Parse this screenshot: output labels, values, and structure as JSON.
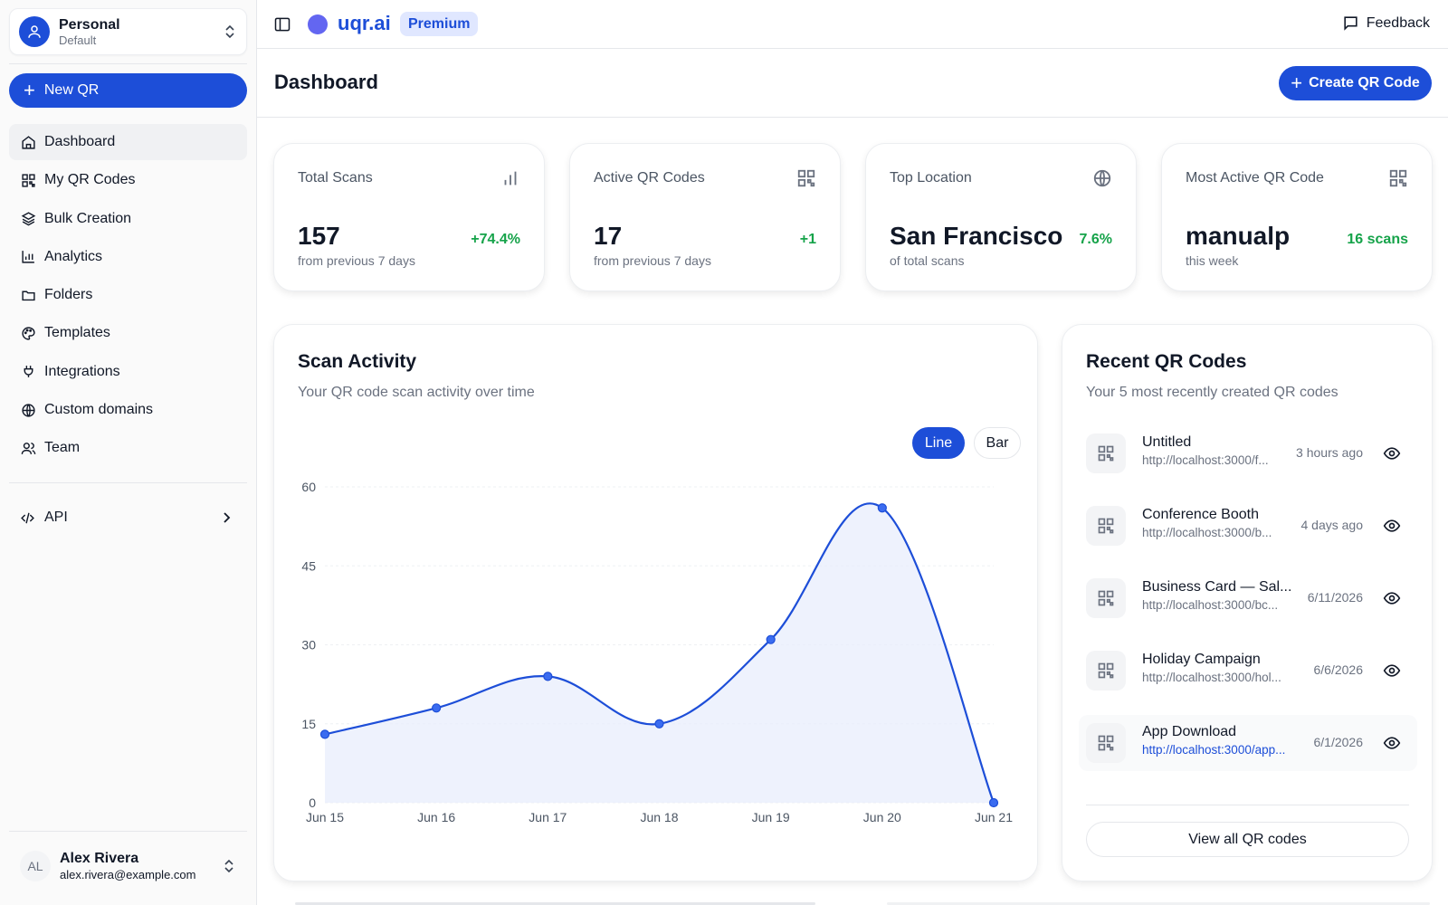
{
  "workspace": {
    "name": "Personal",
    "sub": "Default"
  },
  "sidebar": {
    "new_qr_label": "New QR",
    "items": [
      {
        "label": "Dashboard",
        "icon": "home-icon"
      },
      {
        "label": "My QR Codes",
        "icon": "qr-icon"
      },
      {
        "label": "Bulk Creation",
        "icon": "layers-icon"
      },
      {
        "label": "Analytics",
        "icon": "bar-chart-icon"
      },
      {
        "label": "Folders",
        "icon": "folder-icon"
      },
      {
        "label": "Templates",
        "icon": "palette-icon"
      },
      {
        "label": "Integrations",
        "icon": "plug-icon"
      },
      {
        "label": "Custom domains",
        "icon": "globe-icon"
      },
      {
        "label": "Team",
        "icon": "users-icon"
      }
    ],
    "api_label": "API"
  },
  "user": {
    "initials": "AL",
    "name": "Alex Rivera",
    "email": "alex.rivera@example.com"
  },
  "topbar": {
    "brand": "uqr.ai",
    "plan": "Premium",
    "feedback": "Feedback"
  },
  "header": {
    "title": "Dashboard",
    "create_label": "Create QR Code"
  },
  "stats": [
    {
      "label": "Total Scans",
      "value": "157",
      "sub": "from previous 7 days",
      "change": "+74.4%",
      "icon": "bar-chart-icon"
    },
    {
      "label": "Active QR Codes",
      "value": "17",
      "sub": "from previous 7 days",
      "change": "+1",
      "icon": "qr-icon"
    },
    {
      "label": "Top Location",
      "value": "San Francisco",
      "sub": "of total scans",
      "change": "7.6%",
      "icon": "globe-icon"
    },
    {
      "label": "Most Active QR Code",
      "value": "manualp",
      "sub": "this week",
      "change": "16 scans",
      "icon": "qr-icon"
    }
  ],
  "scan_activity": {
    "title": "Scan Activity",
    "description": "Your QR code scan activity over time",
    "toggle": {
      "line": "Line",
      "bar": "Bar",
      "selected": "Line"
    }
  },
  "chart_data": {
    "type": "line",
    "title": "",
    "xlabel": "",
    "ylabel": "",
    "categories": [
      "Jun 15",
      "Jun 16",
      "Jun 17",
      "Jun 18",
      "Jun 19",
      "Jun 20",
      "Jun 21"
    ],
    "values": [
      13,
      18,
      24,
      15,
      31,
      56,
      0
    ],
    "yticks": [
      0,
      15,
      30,
      45,
      60
    ],
    "ylim": [
      0,
      60
    ],
    "grid": true,
    "line_color": "#1d4ed8",
    "fill_color": "#e8eefc"
  },
  "recent": {
    "title": "Recent QR Codes",
    "description": "Your 5 most recently created QR codes",
    "items": [
      {
        "name": "Untitled",
        "url": "http://localhost:3000/f...",
        "time": "3 hours ago"
      },
      {
        "name": "Conference Booth",
        "url": "http://localhost:3000/b...",
        "time": "4 days ago"
      },
      {
        "name": "Business Card — Sal...",
        "url": "http://localhost:3000/bc...",
        "time": "6/11/2026"
      },
      {
        "name": "Holiday Campaign",
        "url": "http://localhost:3000/hol...",
        "time": "6/6/2026"
      },
      {
        "name": "App Download",
        "url": "http://localhost:3000/app...",
        "time": "6/1/2026"
      }
    ],
    "view_all": "View all QR codes"
  },
  "colors": {
    "accent": "#1d4ed8",
    "positive": "#16a34a",
    "logo": "#6366f1"
  }
}
